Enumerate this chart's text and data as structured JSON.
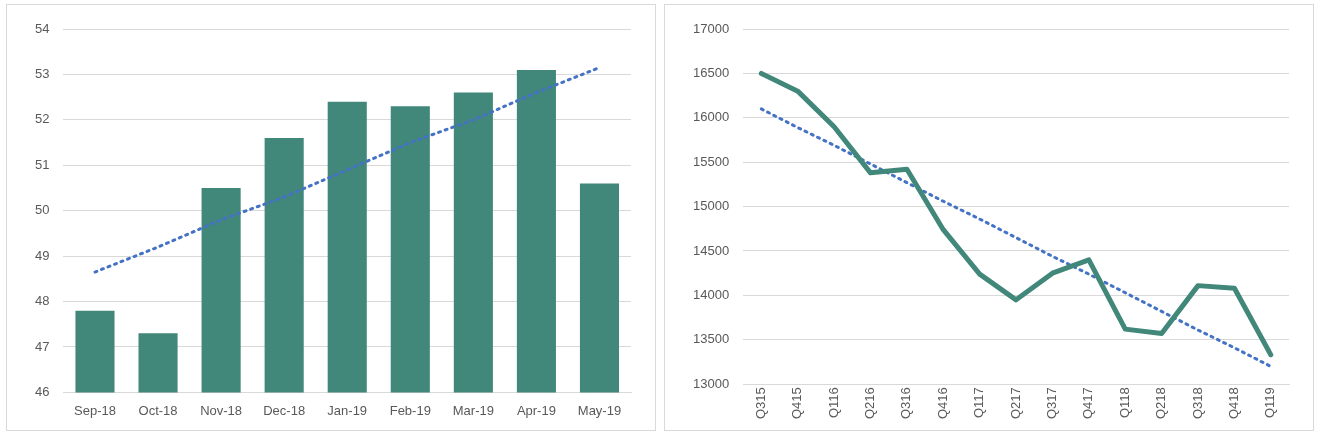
{
  "chart_data": [
    {
      "type": "bar",
      "categories": [
        "Sep-18",
        "Oct-18",
        "Nov-18",
        "Dec-18",
        "Jan-19",
        "Feb-19",
        "Mar-19",
        "Apr-19",
        "May-19"
      ],
      "ylim": [
        46,
        54
      ],
      "yticks": [
        46,
        47,
        48,
        49,
        50,
        51,
        52,
        53,
        54
      ],
      "grid": "y",
      "legend": false,
      "series": [
        {
          "type": "bar",
          "color": "#41877a",
          "values": [
            47.8,
            47.3,
            50.5,
            51.6,
            52.4,
            52.3,
            52.6,
            53.1,
            50.6
          ]
        },
        {
          "type": "line",
          "color": "#4472c4",
          "line_style": "dotted",
          "marker": "none",
          "values": [
            48.65,
            49.2,
            49.8,
            50.3,
            50.9,
            51.5,
            52.0,
            52.6,
            53.15
          ]
        }
      ]
    },
    {
      "type": "line",
      "categories": [
        "Q315",
        "Q415",
        "Q116",
        "Q216",
        "Q316",
        "Q416",
        "Q117",
        "Q217",
        "Q317",
        "Q417",
        "Q118",
        "Q218",
        "Q318",
        "Q418",
        "Q119"
      ],
      "ylim": [
        13000,
        17000
      ],
      "yticks": [
        13000,
        13500,
        14000,
        14500,
        15000,
        15500,
        16000,
        16500,
        17000
      ],
      "grid": "y",
      "legend": false,
      "marker": "none",
      "series": [
        {
          "type": "line",
          "color": "#41877a",
          "line_style": "solid",
          "values": [
            16500,
            16300,
            15900,
            15380,
            15420,
            14740,
            14240,
            13950,
            14250,
            14400,
            13620,
            13570,
            14110,
            14080,
            13330
          ]
        },
        {
          "type": "line",
          "color": "#4472c4",
          "line_style": "dotted",
          "values": [
            16100,
            15890,
            15690,
            15480,
            15270,
            15060,
            14860,
            14650,
            14440,
            14240,
            14030,
            13820,
            13610,
            13410,
            13200
          ]
        }
      ]
    }
  ]
}
